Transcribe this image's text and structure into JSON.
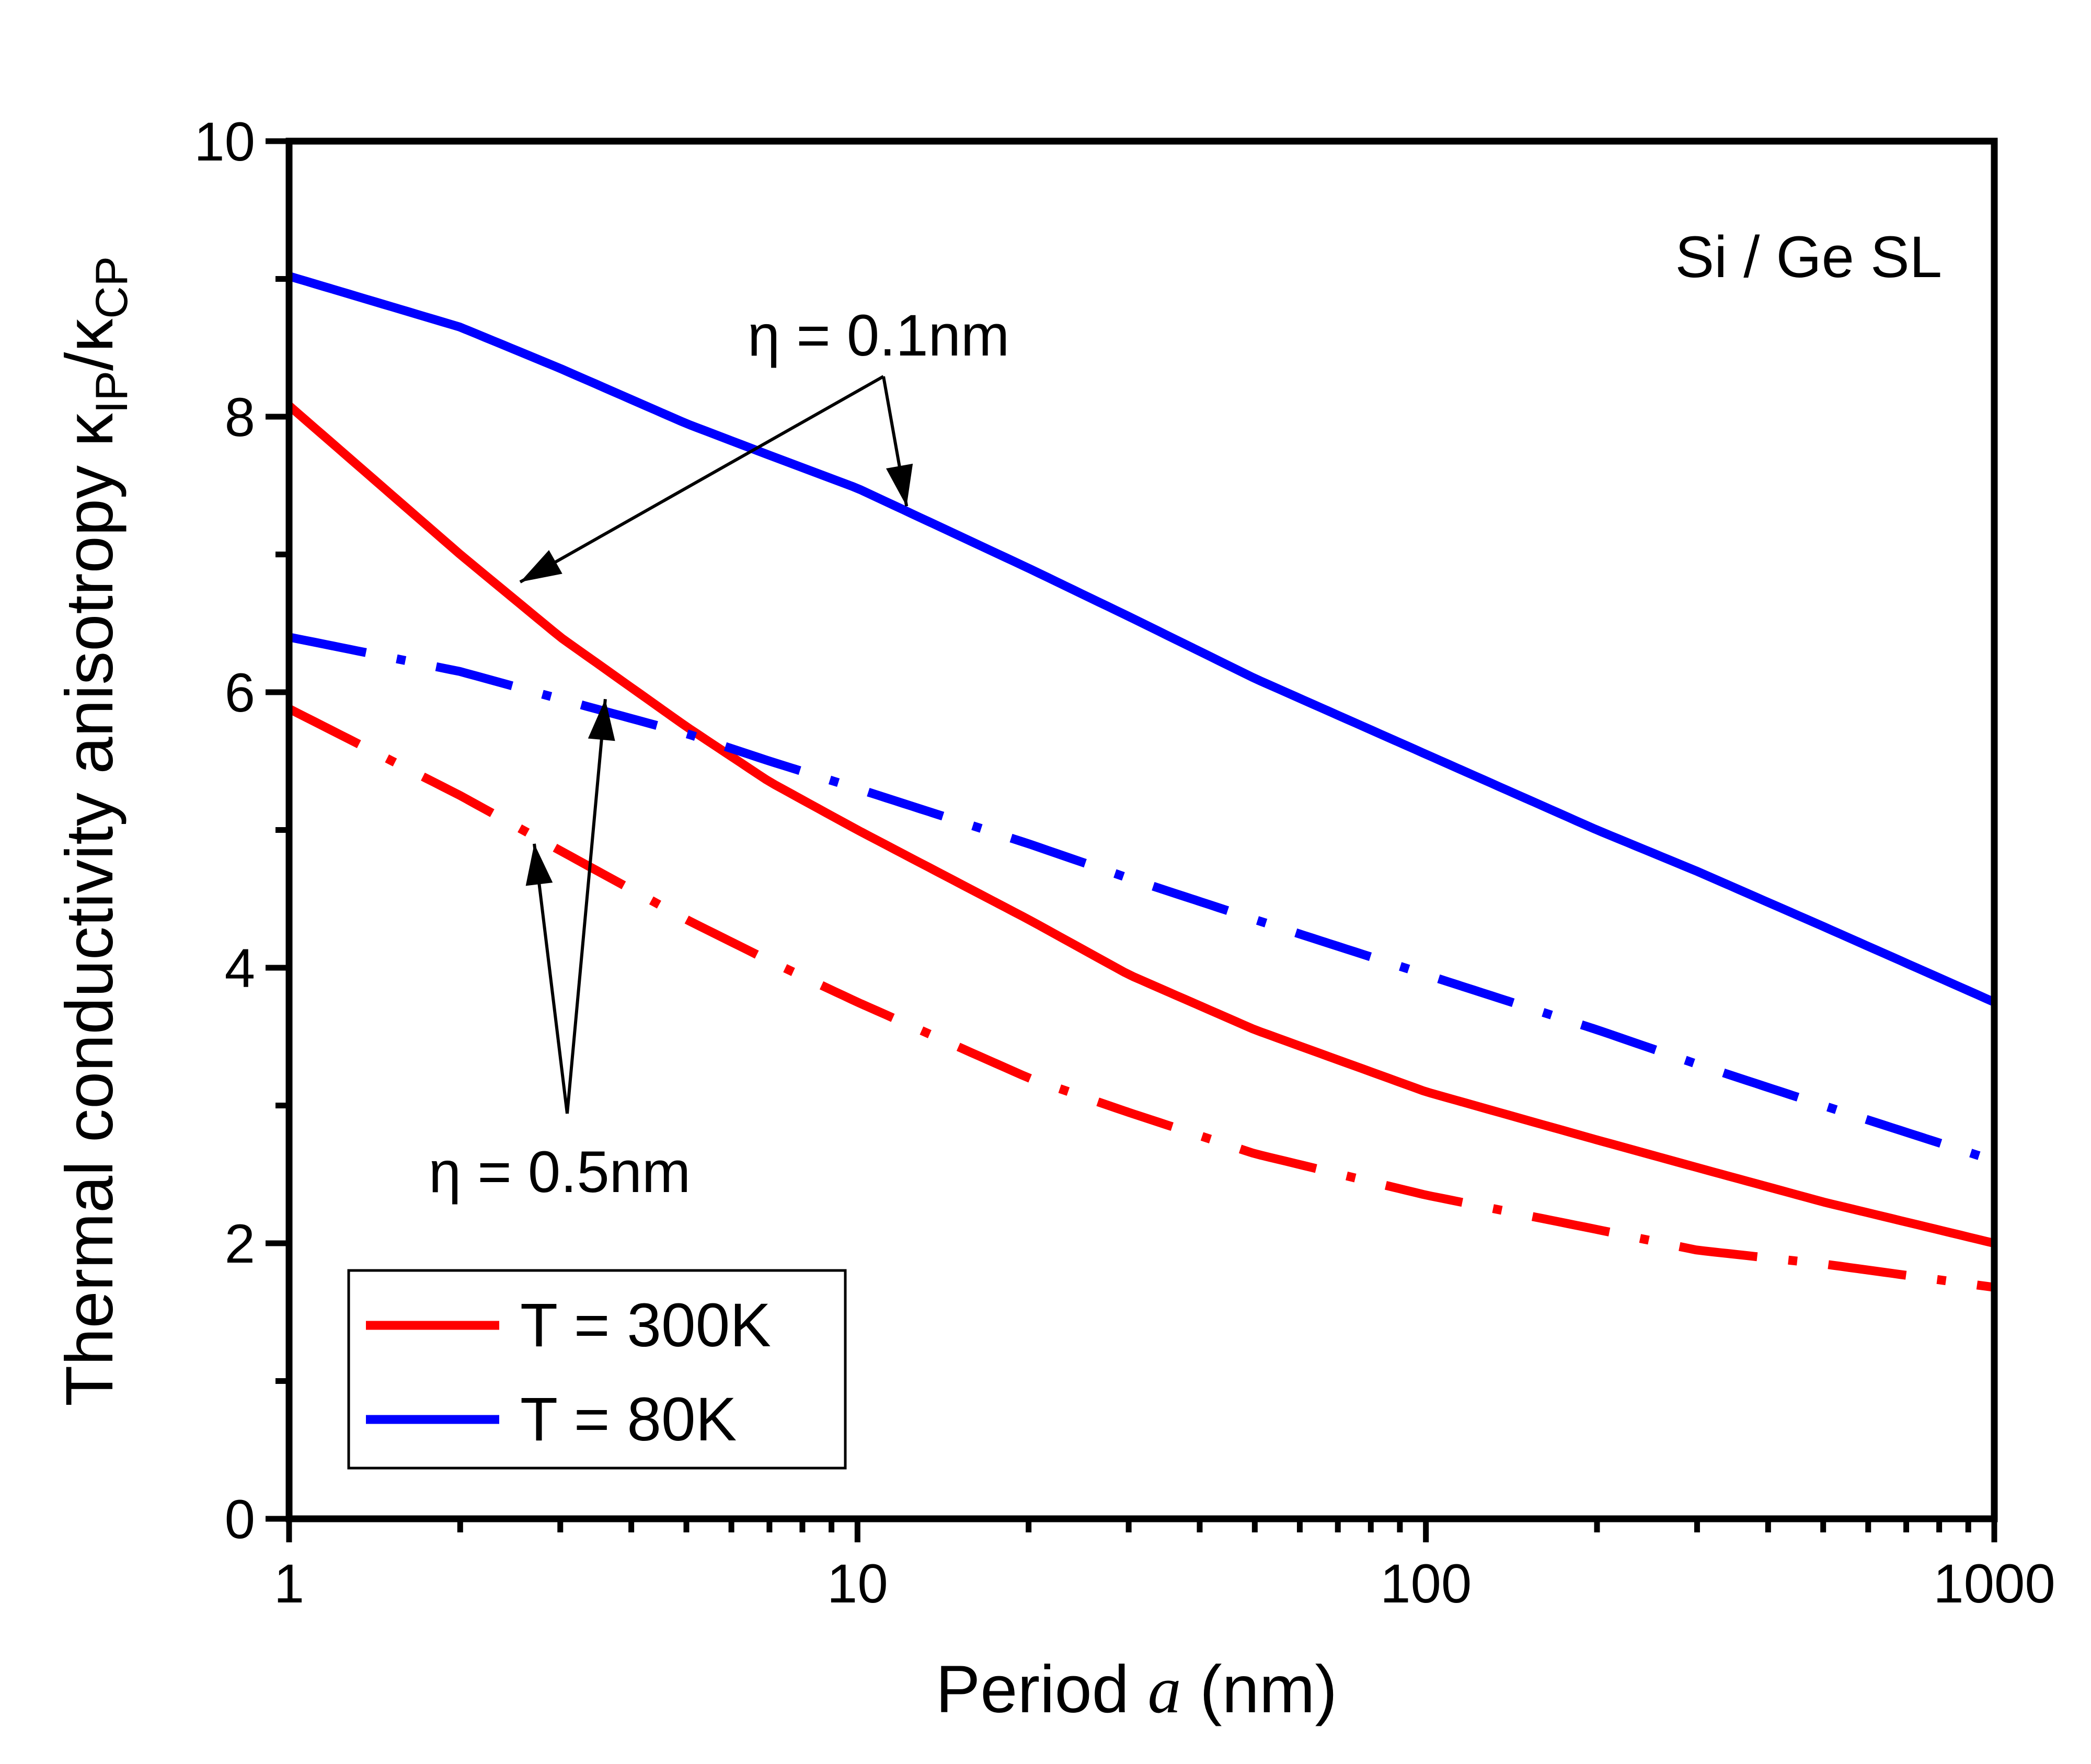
{
  "chart_data": {
    "type": "line",
    "xlabel_prefix": "Period ",
    "xlabel_var": "a",
    "xlabel_suffix": " (nm)",
    "ylabel_main": "Thermal conductivity anisotropy κ",
    "ylabel_sub1": "IP",
    "ylabel_mid": "/κ",
    "ylabel_sub2": "CP",
    "xscale": "log",
    "xlim": [
      1,
      1000
    ],
    "ylim": [
      0,
      10
    ],
    "xticks": [
      1,
      10,
      100,
      1000
    ],
    "xtick_labels": [
      "1",
      "10",
      "100",
      "1000"
    ],
    "yticks": [
      0,
      2,
      4,
      6,
      8,
      10
    ],
    "ytick_labels": [
      "0",
      "2",
      "4",
      "6",
      "8",
      "10"
    ],
    "inset_label": "Si / Ge SL",
    "annotations": {
      "eta_small": "η = 0.1nm",
      "eta_large": "η = 0.5nm"
    },
    "legend": {
      "placement": "bottom-left",
      "entries": [
        {
          "label": "T = 300K",
          "color": "#ff0000"
        },
        {
          "label": "T = 80K",
          "color": "#0000ff"
        }
      ]
    },
    "series": [
      {
        "temperature": "T = 300K",
        "eta": "η = 0.1nm",
        "color": "#ff0000",
        "style": "solid",
        "x": [
          1,
          2,
          3,
          5,
          7,
          10,
          20,
          30,
          50,
          100,
          200,
          300,
          500,
          1000
        ],
        "y": [
          8.08,
          7.0,
          6.4,
          5.75,
          5.35,
          5.0,
          4.35,
          3.95,
          3.55,
          3.1,
          2.75,
          2.55,
          2.3,
          2.0
        ]
      },
      {
        "temperature": "T = 80K",
        "eta": "η = 0.1nm",
        "color": "#0000ff",
        "style": "solid",
        "x": [
          1,
          2,
          3,
          5,
          7,
          10,
          20,
          30,
          50,
          100,
          200,
          300,
          500,
          1000
        ],
        "y": [
          9.02,
          8.65,
          8.35,
          7.95,
          7.72,
          7.48,
          6.9,
          6.55,
          6.1,
          5.55,
          5.0,
          4.7,
          4.3,
          3.75
        ]
      },
      {
        "temperature": "T = 80K",
        "eta": "η = 0.5nm",
        "color": "#0000ff",
        "style": "dashdot",
        "x": [
          1,
          2,
          3,
          5,
          7,
          10,
          20,
          30,
          50,
          100,
          200,
          300,
          500,
          1000
        ],
        "y": [
          6.4,
          6.15,
          5.95,
          5.7,
          5.5,
          5.3,
          4.9,
          4.65,
          4.35,
          3.95,
          3.55,
          3.3,
          3.0,
          2.6
        ]
      },
      {
        "temperature": "T = 300K",
        "eta": "η = 0.5nm",
        "color": "#ff0000",
        "style": "dashdot",
        "x": [
          1,
          2,
          3,
          5,
          7,
          10,
          20,
          30,
          50,
          100,
          200,
          300,
          500,
          1000
        ],
        "y": [
          5.88,
          5.25,
          4.85,
          4.35,
          4.05,
          3.75,
          3.2,
          2.95,
          2.65,
          2.35,
          2.1,
          1.95,
          1.85,
          1.68
        ]
      }
    ]
  }
}
